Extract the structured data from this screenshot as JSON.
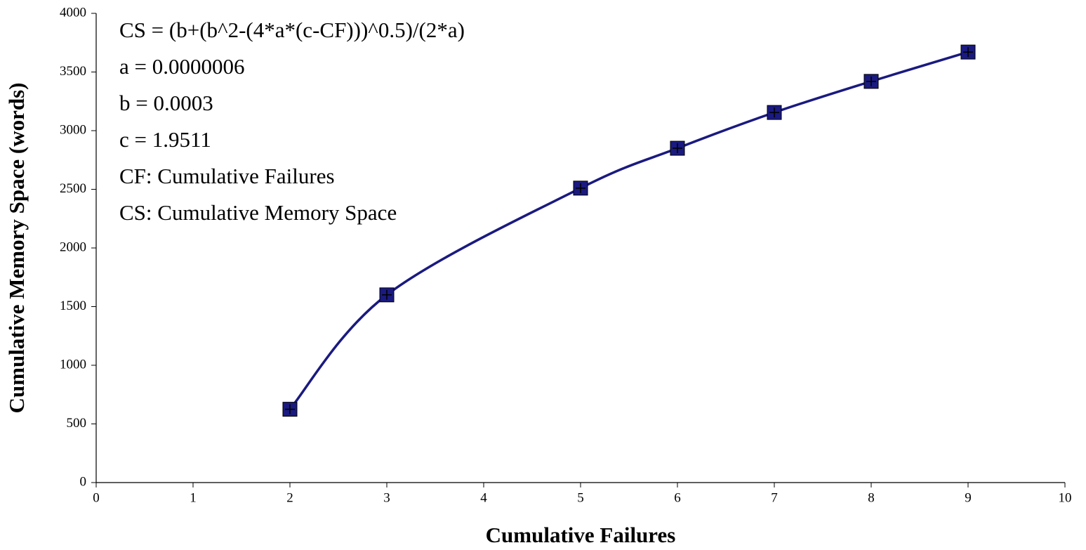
{
  "chart_data": {
    "type": "line",
    "x_label": "Cumulative Failures",
    "y_label": "Cumulative Memory Space (words)",
    "annotations": [
      "CS = (b+(b^2-(4*a*(c-CF)))^0.5)/(2*a)",
      "a = 0.0000006",
      "b = 0.0003",
      "c = 1.9511",
      "CF: Cumulative Failures",
      "CS: Cumulative Memory Space"
    ],
    "x": [
      2,
      3,
      5,
      6,
      7,
      8,
      9
    ],
    "series": [
      {
        "color": "#1a1a80",
        "values": [
          625,
          1600,
          2510,
          2850,
          3155,
          3420,
          3670
        ]
      }
    ],
    "xlim": [
      0,
      10
    ],
    "xticks": [
      0,
      1,
      2,
      3,
      4,
      5,
      6,
      7,
      8,
      9,
      10
    ],
    "ylim": [
      0,
      4000
    ],
    "yticks": [
      0,
      500,
      1000,
      1500,
      2000,
      2500,
      3000,
      3500,
      4000
    ],
    "grid": false,
    "smooth": true
  }
}
